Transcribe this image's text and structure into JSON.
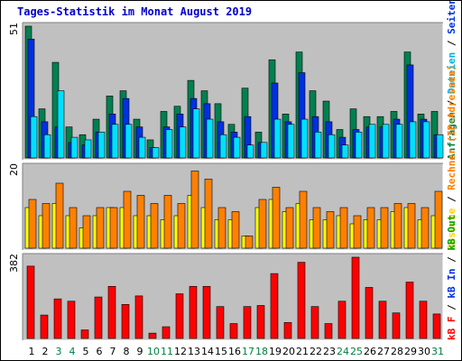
{
  "title": "Tages-Statistik im Monat August 2019",
  "colors": {
    "background": "#c0c0c0",
    "pages": "#0030e0",
    "files": "#00e0ff",
    "hits": "#008050",
    "sites": "#ff8000",
    "visits": "#ffff00",
    "kbin": "#0030e0",
    "kbout": "#00a000",
    "kbf": "#ff0000",
    "weekend": "#008040",
    "weekday": "#000000"
  },
  "right_labels": {
    "top": [
      {
        "text": "Anfragen",
        "color": "#008040"
      },
      {
        "text": " / ",
        "color": "#000000"
      },
      {
        "text": "Dateien",
        "color": "#00b0e0"
      },
      {
        "text": " / ",
        "color": "#000000"
      },
      {
        "text": "Seiten",
        "color": "#0030e0"
      }
    ],
    "mid": [
      {
        "text": "Besuche",
        "color": "#ffd000"
      },
      {
        "text": " / ",
        "color": "#000000"
      },
      {
        "text": "Rechner (IP-Adressen)",
        "color": "#ff8000"
      }
    ],
    "bot": [
      {
        "text": "kB F",
        "color": "#ff0000"
      },
      {
        "text": " / ",
        "color": "#000000"
      },
      {
        "text": "kB In",
        "color": "#0030e0"
      },
      {
        "text": " / ",
        "color": "#000000"
      },
      {
        "text": "kB Out",
        "color": "#00a000"
      }
    ]
  },
  "chart_data": [
    {
      "type": "bar",
      "title": "Anfragen / Dateien / Seiten",
      "y_max_label": "51",
      "ylim": [
        0,
        51
      ],
      "categories": [
        "1",
        "2",
        "3",
        "4",
        "5",
        "6",
        "7",
        "8",
        "9",
        "10",
        "11",
        "12",
        "13",
        "14",
        "15",
        "16",
        "17",
        "18",
        "19",
        "20",
        "21",
        "22",
        "23",
        "24",
        "25",
        "26",
        "27",
        "28",
        "29",
        "30",
        "31"
      ],
      "weekend_days": [
        "3",
        "4",
        "10",
        "11",
        "17",
        "18",
        "24",
        "25",
        "31"
      ],
      "series": [
        {
          "name": "Anfragen",
          "color": "#008050",
          "values": [
            51,
            19,
            37,
            12,
            9,
            15,
            24,
            26,
            15,
            7,
            18,
            20,
            30,
            26,
            21,
            13,
            27,
            10,
            38,
            17,
            41,
            26,
            22,
            11,
            19,
            16,
            16,
            18,
            41,
            17,
            18
          ]
        },
        {
          "name": "Dateien",
          "color": "#00e0ff",
          "values": [
            16,
            9,
            26,
            8,
            7,
            10,
            13,
            13,
            8,
            4,
            11,
            12,
            19,
            15,
            9,
            8,
            5,
            6,
            15,
            13,
            15,
            10,
            9,
            5,
            10,
            13,
            13,
            13,
            14,
            14,
            9
          ]
        },
        {
          "name": "Seiten",
          "color": "#0030e0",
          "values": [
            46,
            14,
            12,
            6,
            5,
            10,
            17,
            23,
            12,
            4,
            12,
            17,
            23,
            21,
            14,
            10,
            16,
            6,
            29,
            14,
            33,
            16,
            14,
            8,
            11,
            12,
            12,
            15,
            36,
            15,
            9
          ]
        }
      ]
    },
    {
      "type": "bar",
      "title": "Besuche / Rechner (IP-Adressen)",
      "y_max_label": "20",
      "ylim": [
        0,
        20
      ],
      "categories": [
        "1",
        "2",
        "3",
        "4",
        "5",
        "6",
        "7",
        "8",
        "9",
        "10",
        "11",
        "12",
        "13",
        "14",
        "15",
        "16",
        "17",
        "18",
        "19",
        "20",
        "21",
        "22",
        "23",
        "24",
        "25",
        "26",
        "27",
        "28",
        "29",
        "30",
        "31"
      ],
      "series": [
        {
          "name": "Rechner (IP-Adressen)",
          "color": "#ff8000",
          "values": [
            12,
            11,
            16,
            10,
            8,
            10,
            10,
            14,
            13,
            11,
            13,
            11,
            19,
            17,
            10,
            9,
            3,
            12,
            15,
            10,
            14,
            10,
            9,
            10,
            8,
            10,
            10,
            11,
            11,
            10,
            14
          ]
        },
        {
          "name": "Besuche",
          "color": "#ffff00",
          "values": [
            10,
            8,
            11,
            8,
            5,
            8,
            10,
            10,
            8,
            8,
            7,
            8,
            13,
            10,
            7,
            7,
            3,
            10,
            12,
            9,
            11,
            7,
            7,
            8,
            6,
            7,
            7,
            9,
            10,
            7,
            8
          ]
        }
      ]
    },
    {
      "type": "bar",
      "title": "kB F / kB In / kB Out",
      "y_max_label": "382",
      "ylim": [
        0,
        382
      ],
      "categories": [
        "1",
        "2",
        "3",
        "4",
        "5",
        "6",
        "7",
        "8",
        "9",
        "10",
        "11",
        "12",
        "13",
        "14",
        "15",
        "16",
        "17",
        "18",
        "19",
        "20",
        "21",
        "22",
        "23",
        "24",
        "25",
        "26",
        "27",
        "28",
        "29",
        "30",
        "31"
      ],
      "series": [
        {
          "name": "kB F",
          "color": "#ff0000",
          "values": [
            340,
            110,
            186,
            175,
            40,
            195,
            245,
            160,
            200,
            25,
            55,
            210,
            245,
            245,
            150,
            70,
            150,
            155,
            305,
            75,
            358,
            150,
            70,
            175,
            382,
            240,
            175,
            120,
            265,
            175,
            115
          ]
        }
      ]
    }
  ]
}
